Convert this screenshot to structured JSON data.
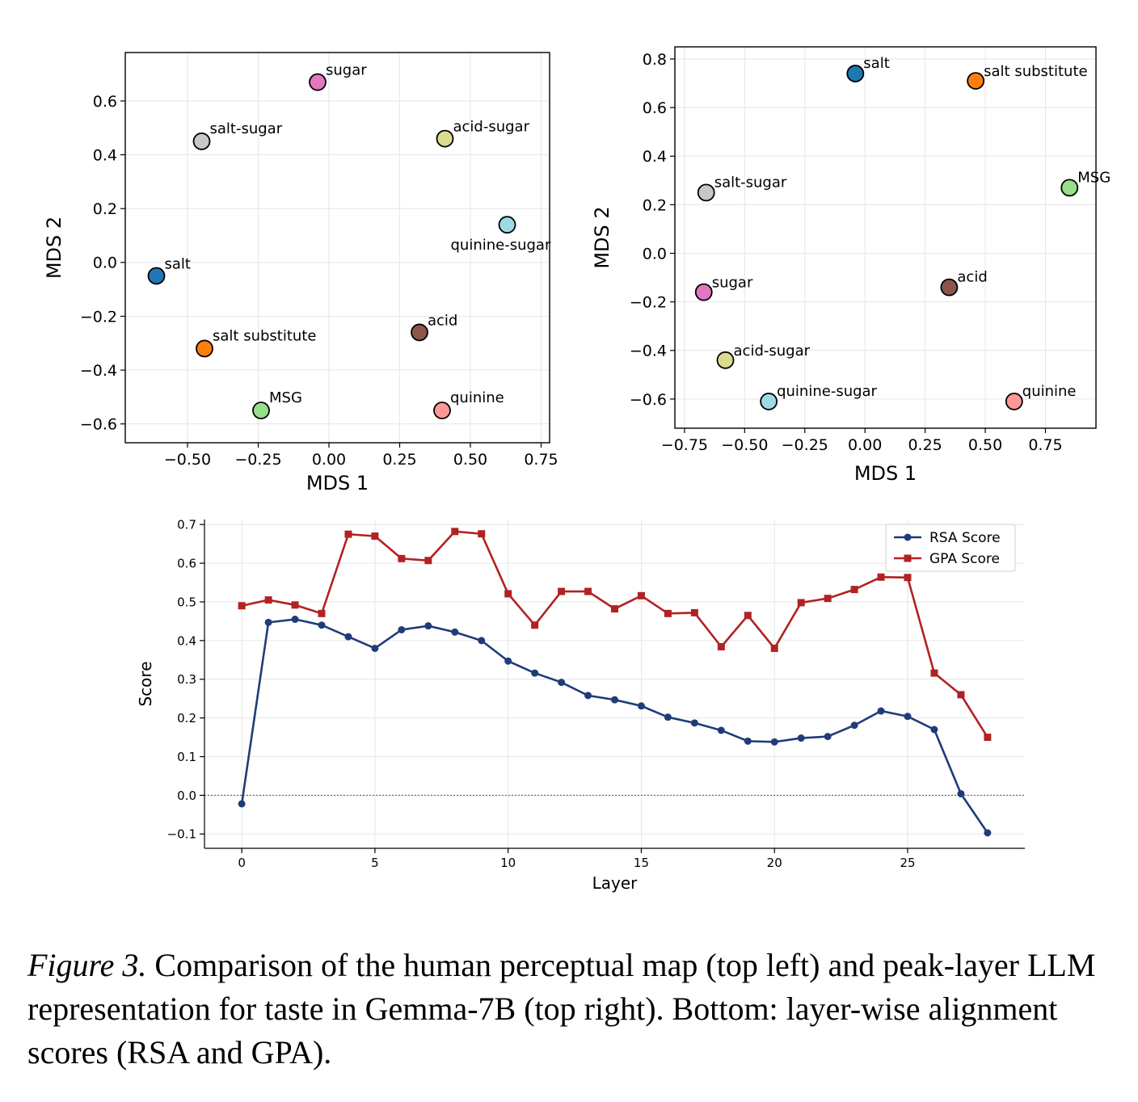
{
  "caption": {
    "label": "Figure 3.",
    "text": "Comparison of the human perceptual map (top left) and peak-layer LLM representation for taste in Gemma-7B (top right). Bottom: layer-wise alignment scores (RSA and GPA)."
  },
  "chart_data": [
    {
      "type": "scatter",
      "xlabel": "MDS 1",
      "ylabel": "MDS 2",
      "xlim": [
        -0.72,
        0.78
      ],
      "ylim": [
        -0.67,
        0.78
      ],
      "xticks": [
        -0.5,
        -0.25,
        0.0,
        0.25,
        0.5,
        0.75
      ],
      "xtick_labels": [
        "−0.50",
        "−0.25",
        "0.00",
        "0.25",
        "0.50",
        "0.75"
      ],
      "yticks": [
        -0.6,
        -0.4,
        -0.2,
        0.0,
        0.2,
        0.4,
        0.6
      ],
      "ytick_labels": [
        "−0.6",
        "−0.4",
        "−0.2",
        "0.0",
        "0.2",
        "0.4",
        "0.6"
      ],
      "grid": true,
      "points": [
        {
          "label": "sugar",
          "x": -0.04,
          "y": 0.67,
          "color": "#e377c2"
        },
        {
          "label": "salt-sugar",
          "x": -0.45,
          "y": 0.45,
          "color": "#c7c7c7"
        },
        {
          "label": "acid-sugar",
          "x": 0.41,
          "y": 0.46,
          "color": "#dbdb8d"
        },
        {
          "label": "quinine-sugar",
          "x": 0.63,
          "y": 0.14,
          "color": "#9edae5"
        },
        {
          "label": "salt",
          "x": -0.61,
          "y": -0.05,
          "color": "#1f77b4"
        },
        {
          "label": "acid",
          "x": 0.32,
          "y": -0.26,
          "color": "#8c564b"
        },
        {
          "label": "salt substitute",
          "x": -0.44,
          "y": -0.32,
          "color": "#ff7f0e"
        },
        {
          "label": "MSG",
          "x": -0.24,
          "y": -0.55,
          "color": "#98df8a"
        },
        {
          "label": "quinine",
          "x": 0.4,
          "y": -0.55,
          "color": "#ff9896"
        }
      ]
    },
    {
      "type": "scatter",
      "xlabel": "MDS 1",
      "ylabel": "MDS 2",
      "xlim": [
        -0.79,
        0.96
      ],
      "ylim": [
        -0.72,
        0.85
      ],
      "xticks": [
        -0.75,
        -0.5,
        -0.25,
        0.0,
        0.25,
        0.5,
        0.75
      ],
      "xtick_labels": [
        "−0.75",
        "−0.50",
        "−0.25",
        "0.00",
        "0.25",
        "0.50",
        "0.75"
      ],
      "yticks": [
        -0.6,
        -0.4,
        -0.2,
        0.0,
        0.2,
        0.4,
        0.6,
        0.8
      ],
      "ytick_labels": [
        "−0.6",
        "−0.4",
        "−0.2",
        "0.0",
        "0.2",
        "0.4",
        "0.6",
        "0.8"
      ],
      "grid": true,
      "points": [
        {
          "label": "salt",
          "x": -0.04,
          "y": 0.74,
          "color": "#1f77b4"
        },
        {
          "label": "salt substitute",
          "x": 0.46,
          "y": 0.71,
          "color": "#ff7f0e"
        },
        {
          "label": "salt-sugar",
          "x": -0.66,
          "y": 0.25,
          "color": "#c7c7c7"
        },
        {
          "label": "MSG",
          "x": 0.85,
          "y": 0.27,
          "color": "#98df8a"
        },
        {
          "label": "sugar",
          "x": -0.67,
          "y": -0.16,
          "color": "#e377c2"
        },
        {
          "label": "acid",
          "x": 0.35,
          "y": -0.14,
          "color": "#8c564b"
        },
        {
          "label": "acid-sugar",
          "x": -0.58,
          "y": -0.44,
          "color": "#dbdb8d"
        },
        {
          "label": "quinine-sugar",
          "x": -0.4,
          "y": -0.61,
          "color": "#9edae5"
        },
        {
          "label": "quinine",
          "x": 0.62,
          "y": -0.61,
          "color": "#ff9896"
        }
      ]
    },
    {
      "type": "line",
      "xlabel": "Layer",
      "ylabel": "Score",
      "xlim": [
        -1.4,
        29.4
      ],
      "ylim": [
        -0.137,
        0.713
      ],
      "xticks": [
        0,
        5,
        10,
        15,
        20,
        25
      ],
      "xtick_labels": [
        "0",
        "5",
        "10",
        "15",
        "20",
        "25"
      ],
      "yticks": [
        -0.1,
        0.0,
        0.1,
        0.2,
        0.3,
        0.4,
        0.5,
        0.6,
        0.7
      ],
      "ytick_labels": [
        "−0.1",
        "0.0",
        "0.1",
        "0.2",
        "0.3",
        "0.4",
        "0.5",
        "0.6",
        "0.7"
      ],
      "grid": true,
      "zero_line": true,
      "legend_position": "top-right",
      "x": [
        0,
        1,
        2,
        3,
        4,
        5,
        6,
        7,
        8,
        9,
        10,
        11,
        12,
        13,
        14,
        15,
        16,
        17,
        18,
        19,
        20,
        21,
        22,
        23,
        24,
        25,
        26,
        27,
        28
      ],
      "series": [
        {
          "name": "RSA Score",
          "color": "#1f3c7a",
          "marker": "circle",
          "values": [
            -0.022,
            0.447,
            0.455,
            0.44,
            0.41,
            0.38,
            0.428,
            0.438,
            0.422,
            0.4,
            0.347,
            0.316,
            0.292,
            0.258,
            0.247,
            0.231,
            0.202,
            0.187,
            0.168,
            0.14,
            0.138,
            0.148,
            0.152,
            0.181,
            0.218,
            0.204,
            0.17,
            0.004,
            -0.097
          ]
        },
        {
          "name": "GPA Score",
          "color": "#b22222",
          "marker": "square",
          "values": [
            0.49,
            0.505,
            0.492,
            0.47,
            0.675,
            0.67,
            0.612,
            0.607,
            0.682,
            0.676,
            0.521,
            0.44,
            0.527,
            0.527,
            0.482,
            0.516,
            0.47,
            0.472,
            0.384,
            0.465,
            0.38,
            0.498,
            0.509,
            0.532,
            0.564,
            0.563,
            0.316,
            0.26,
            0.15
          ]
        }
      ]
    }
  ]
}
